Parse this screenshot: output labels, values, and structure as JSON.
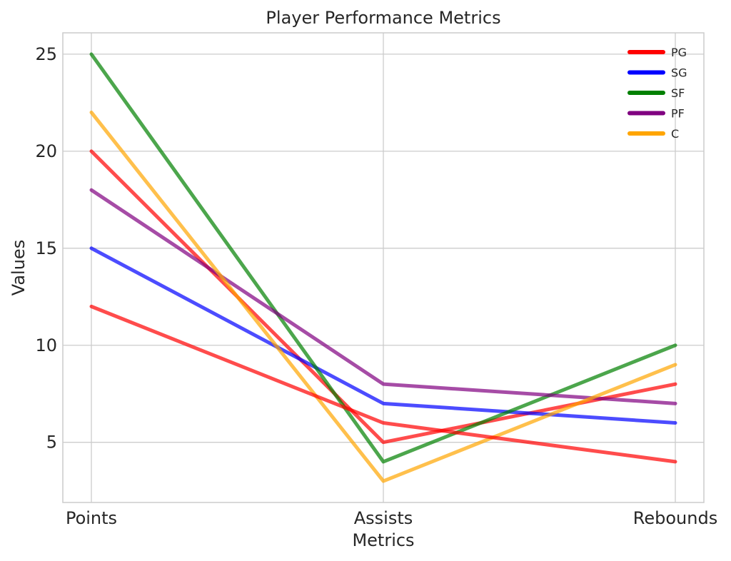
{
  "chart_data": {
    "type": "line",
    "title": "Player Performance Metrics",
    "xlabel": "Metrics",
    "ylabel": "Values",
    "categories": [
      "Points",
      "Assists",
      "Rebounds"
    ],
    "yticks": [
      5,
      10,
      15,
      20,
      25
    ],
    "ylim": [
      1.9,
      26.1
    ],
    "grid": true,
    "legend_position": "top-right",
    "series": [
      {
        "name": "PG",
        "color": "#ff0000",
        "values": [
          20,
          5,
          8
        ]
      },
      {
        "name": "SG",
        "color": "#0000ff",
        "values": [
          15,
          7,
          6
        ]
      },
      {
        "name": "SF",
        "color": "#008000",
        "values": [
          25,
          4,
          10
        ]
      },
      {
        "name": "PF",
        "color": "#800080",
        "values": [
          18,
          8,
          7
        ]
      },
      {
        "name": "C",
        "color": "#ffa500",
        "values": [
          22,
          3,
          9
        ]
      },
      {
        "name": "",
        "color": "#ff0000",
        "values": [
          12,
          6,
          4
        ]
      }
    ]
  }
}
